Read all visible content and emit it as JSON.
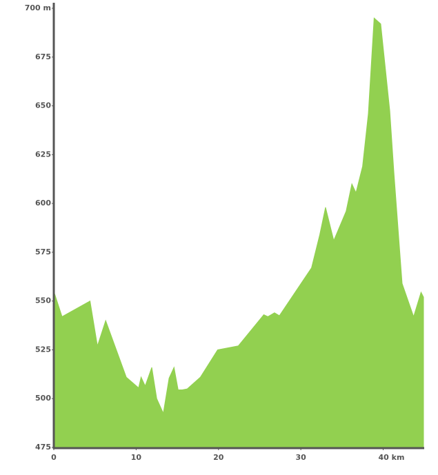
{
  "chart_data": {
    "type": "area",
    "x": [
      0,
      1.0,
      4.4,
      5.3,
      6.3,
      8.8,
      10.3,
      10.6,
      11.1,
      11.9,
      12.5,
      13.3,
      14.0,
      14.6,
      15.1,
      15.6,
      16.2,
      17.8,
      19.9,
      22.4,
      25.5,
      26.0,
      26.8,
      27.4,
      31.3,
      32.3,
      33.0,
      34.0,
      35.5,
      36.2,
      36.7,
      37.5,
      38.2,
      38.9,
      39.7,
      40.8,
      41.3,
      42.3,
      43.7,
      44.6,
      44.9
    ],
    "values": [
      555,
      542,
      550,
      527,
      540,
      511,
      505.5,
      511,
      506.5,
      516,
      500,
      492.5,
      510.5,
      516,
      504.5,
      504.5,
      505,
      511,
      525,
      527,
      543,
      542,
      544,
      542.5,
      567,
      584,
      598,
      581,
      596,
      610,
      605.5,
      619,
      646,
      695,
      692,
      647.5,
      616,
      559,
      542,
      554.5,
      552
    ],
    "color": "#92d050",
    "xlim": [
      0,
      44.9
    ],
    "ylim": [
      475,
      700
    ],
    "xticks": [
      0,
      10,
      20,
      30,
      {
        "value": 40,
        "label": "40 km"
      }
    ],
    "yticks": [
      475,
      500,
      525,
      550,
      575,
      600,
      625,
      650,
      675,
      {
        "value": 700,
        "label": "700 m"
      }
    ],
    "grid": false
  }
}
